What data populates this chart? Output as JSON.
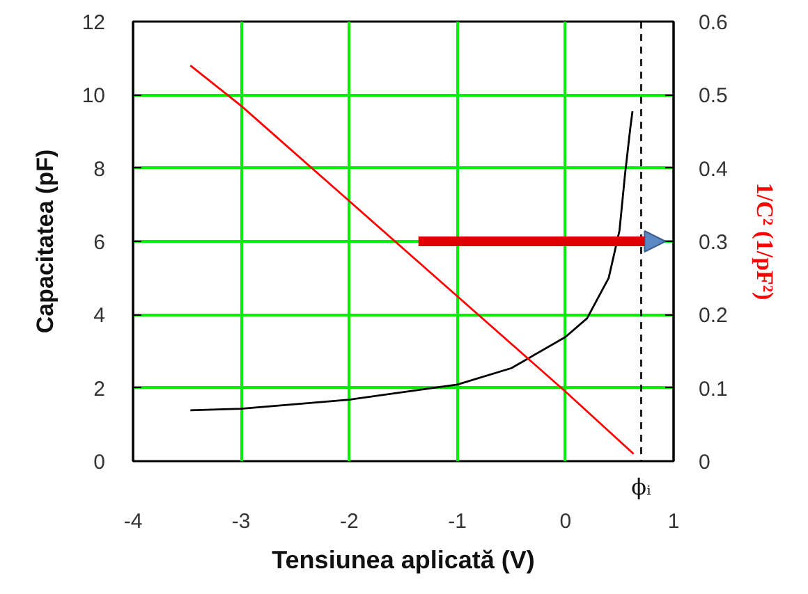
{
  "chart_data": {
    "type": "line",
    "xlabel": "Tensiunea aplicată (V)",
    "ylabel": "Capacitatea (pF)",
    "y2label": "1/C² (1/pF²)",
    "xlim": [
      -4,
      1
    ],
    "xticks": [
      -4,
      -3,
      -2,
      -1,
      0,
      1
    ],
    "ylim": [
      0,
      12
    ],
    "yticks": [
      0,
      2,
      4,
      6,
      8,
      10,
      12
    ],
    "y2lim": [
      0,
      0.6
    ],
    "y2ticks": [
      0,
      0.1,
      0.2,
      0.3,
      0.4,
      0.5,
      0.6
    ],
    "grid": true,
    "series": [
      {
        "color": "#000000",
        "x": [
          -3.47,
          -3,
          -2,
          -1,
          -0.5,
          0,
          0.2,
          0.4,
          0.5,
          0.55,
          0.6,
          0.62
        ],
        "values": [
          1.39,
          1.43,
          1.68,
          2.09,
          2.54,
          3.39,
          3.9,
          5.0,
          6.3,
          7.8,
          9.1,
          9.55
        ]
      },
      {
        "color": "#ff0000",
        "axis": "y2",
        "x": [
          -3.47,
          -3,
          -2,
          -1,
          0,
          0.63
        ],
        "values": [
          0.54,
          0.485,
          0.355,
          0.225,
          0.095,
          0.01
        ]
      }
    ],
    "ref_lines": [
      {
        "axis": "x",
        "value": 0.7,
        "label": "ϕᵢ",
        "color": "#000000",
        "line_style": "dashed"
      }
    ]
  }
}
